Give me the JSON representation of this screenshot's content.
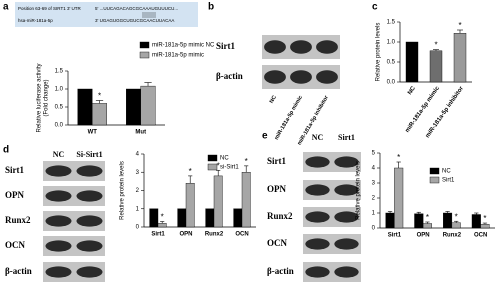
{
  "panel_labels": [
    "a",
    "b",
    "c",
    "d",
    "e"
  ],
  "sequence": {
    "utr_label": "Position 63-69 of SIRT1 3' UTR",
    "utr_seq": "5'  ...UUCAGACAGCGCAAAUGUUUCU...",
    "mirna_label": "hsa-miR-181a-5p",
    "mirna_seq": "3'  UGAGUGGCUGUCGCAACUUACAA"
  },
  "blots": [
    {
      "lanes": [
        "NC",
        "miR-181a-5p mimic",
        "miR-181a-5p inhibitor"
      ],
      "rows": [
        "Sirt1",
        "β-actin"
      ]
    },
    {
      "lanes": [
        "NC",
        "Si-Sirt1"
      ],
      "rows": [
        "Sirt1",
        "OPN",
        "Runx2",
        "OCN",
        "β-actin"
      ]
    },
    {
      "lanes": [
        "NC",
        "Sirt1"
      ],
      "rows": [
        "Sirt1",
        "OPN",
        "Runx2",
        "OCN",
        "β-actin"
      ]
    }
  ],
  "chart_data": [
    {
      "type": "bar",
      "ylabel": [
        "Relative luciferase activity",
        "(Fold change)"
      ],
      "categories": [
        "WT",
        "Mut"
      ],
      "series": [
        {
          "name": "miR-181a-5p mimic NC",
          "color": "#000000",
          "values": [
            1.0,
            1.0
          ]
        },
        {
          "name": "miR-181a-5p mimic",
          "color": "#a6a6a6",
          "values": [
            0.6,
            1.08
          ],
          "errors": [
            0.08,
            0.1
          ],
          "significance": [
            "*",
            null
          ]
        }
      ],
      "ylim": [
        0,
        1.5
      ],
      "yticks": [
        {
          "value": 0,
          "label": "0.0"
        },
        0.5,
        {
          "value": 1,
          "label": "1.0"
        },
        1.5
      ],
      "legend": true
    },
    {
      "type": "bar",
      "ylabel": [
        "Relative protein levels"
      ],
      "categories": [
        "NC",
        "miR-181a-5p mimic",
        "miR-181a-5p inhibitor"
      ],
      "values": [
        1.0,
        0.78,
        1.22
      ],
      "colors": [
        "#000000",
        "#6e6e6e",
        "#9a9a9a"
      ],
      "errors": [
        0,
        0.03,
        0.08
      ],
      "significance": [
        null,
        "*",
        "*"
      ],
      "ylim": [
        0,
        1.5
      ],
      "yticks": [
        {
          "value": 0,
          "label": "0.0"
        },
        0.5,
        {
          "value": 1,
          "label": "1.0"
        },
        1.5
      ]
    },
    {
      "type": "bar",
      "ylabel": [
        "Relative protein levels"
      ],
      "categories": [
        "Sirt1",
        "OPN",
        "Runx2",
        "OCN"
      ],
      "series": [
        {
          "name": "NC",
          "color": "#000000",
          "values": [
            1,
            1,
            1,
            1
          ]
        },
        {
          "name": "si-Sirt1",
          "color": "#a6a6a6",
          "values": [
            0.2,
            2.4,
            2.8,
            3.0
          ],
          "errors": [
            0.1,
            0.4,
            0.3,
            0.35
          ],
          "significance": [
            "*",
            "*",
            "*",
            "*"
          ]
        }
      ],
      "ylim": [
        0,
        4
      ],
      "yticks": [
        0,
        1,
        2,
        3,
        4
      ],
      "legend": true
    },
    {
      "type": "bar",
      "ylabel": [
        "Relative protein levels"
      ],
      "categories": [
        "Sirt1",
        "OPN",
        "Runx2",
        "OCN"
      ],
      "series": [
        {
          "name": "NC",
          "color": "#000000",
          "values": [
            1,
            0.95,
            1,
            0.9
          ],
          "errors": [
            0.1,
            0.1,
            0.1,
            0.1
          ]
        },
        {
          "name": "Sirt1",
          "color": "#a6a6a6",
          "values": [
            4.0,
            0.3,
            0.35,
            0.25
          ],
          "errors": [
            0.4,
            0.1,
            0.1,
            0.08
          ],
          "significance": [
            "*",
            "*",
            "*",
            "*"
          ]
        }
      ],
      "ylim": [
        0,
        5
      ],
      "yticks": [
        0,
        1,
        2,
        3,
        4,
        5
      ],
      "legend": true
    }
  ]
}
